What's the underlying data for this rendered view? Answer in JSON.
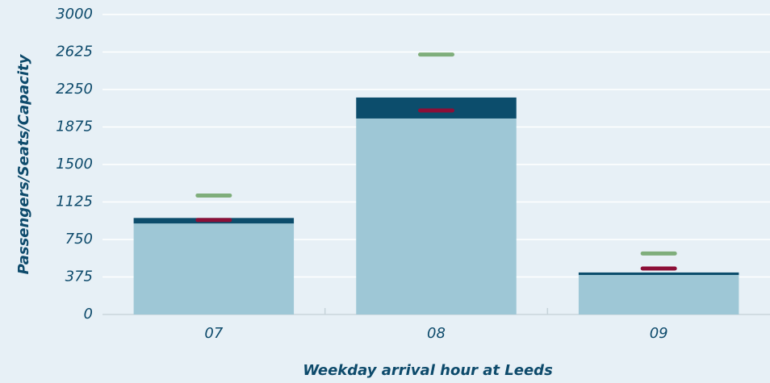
{
  "chart_data": {
    "type": "bar",
    "categories": [
      "07",
      "08",
      "09"
    ],
    "series": [
      {
        "color": "#9ec7d6",
        "values": [
          910,
          1960,
          395
        ]
      },
      {
        "color": "#0c4d6c",
        "values": [
          55,
          210,
          25
        ]
      }
    ],
    "markers": [
      {
        "color": "#8c0f37",
        "values": [
          945,
          2040,
          460
        ]
      },
      {
        "color": "#7fae7b",
        "values": [
          1190,
          2600,
          610
        ]
      }
    ],
    "x_label": "Weekday arrival hour at Leeds",
    "y_label": "Passengers/Seats/Capacity",
    "ylim": [
      0,
      3000
    ],
    "yticks": [
      0,
      375,
      750,
      1125,
      1500,
      1875,
      2250,
      2625,
      3000
    ],
    "grid": true
  }
}
